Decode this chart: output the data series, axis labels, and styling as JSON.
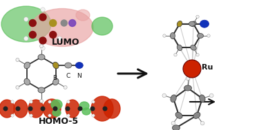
{
  "bg_color": "#ffffff",
  "lumo_label": "LUMO",
  "homo_label": "HOMO-5",
  "ru_label": "Ru",
  "b_label": "B",
  "c_label": "C",
  "n_label": "N",
  "green": "#5abf5a",
  "pink": "#e8a0a0",
  "dark_red": "#8b1010",
  "red": "#cc2200",
  "blue": "#1133bb",
  "yellow": "#a89020",
  "gray": "#888888",
  "white": "#f2f2f2",
  "black": "#111111",
  "bond_color": "#333333",
  "coord_color": "#cccccc"
}
